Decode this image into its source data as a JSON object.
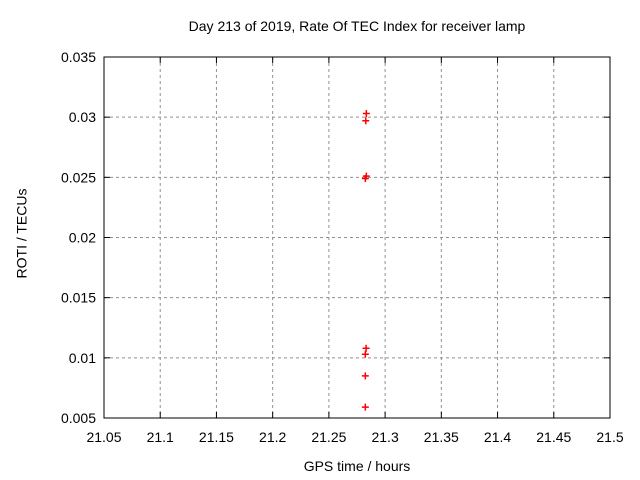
{
  "chart_data": {
    "type": "scatter",
    "title": "Day 213 of 2019, Rate Of TEC Index for receiver lamp",
    "xlabel": "GPS time / hours",
    "ylabel": "ROTI / TECUs",
    "xlim": [
      21.05,
      21.5
    ],
    "ylim": [
      0.005,
      0.035
    ],
    "xtick_values": [
      21.05,
      21.1,
      21.15,
      21.2,
      21.25,
      21.3,
      21.35,
      21.4,
      21.45,
      21.5
    ],
    "xtick_labels": [
      "21.05",
      "21.1",
      "21.15",
      "21.2",
      "21.25",
      "21.3",
      "21.35",
      "21.4",
      "21.45",
      "21.5"
    ],
    "ytick_values": [
      0.005,
      0.01,
      0.015,
      0.02,
      0.025,
      0.03,
      0.035
    ],
    "ytick_labels": [
      "0.005",
      "0.01",
      "0.015",
      "0.02",
      "0.025",
      "0.03",
      "0.035"
    ],
    "grid": true,
    "legend_position": "none",
    "series": [
      {
        "name": "ROTI",
        "marker": "plus",
        "color": "#ff0000",
        "points": [
          [
            21.2833,
            0.0303
          ],
          [
            21.2828,
            0.0297
          ],
          [
            21.2833,
            0.0251
          ],
          [
            21.2824,
            0.0249
          ],
          [
            21.2831,
            0.0108
          ],
          [
            21.2824,
            0.0103
          ],
          [
            21.2824,
            0.0085
          ],
          [
            21.2824,
            0.0059
          ]
        ]
      }
    ]
  },
  "colors": {
    "background": "#ffffff",
    "plot_border": "#000000",
    "grid": "#909090",
    "text": "#000000",
    "marker": "#ff0000"
  }
}
